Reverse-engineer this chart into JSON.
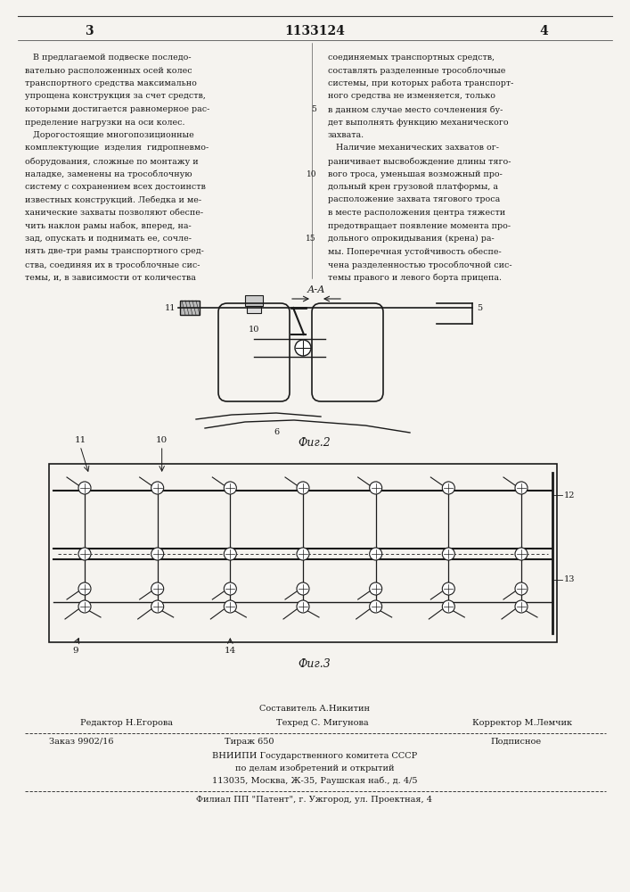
{
  "background_color": "#f5f3ef",
  "header": {
    "left_num": "3",
    "center_num": "1133124",
    "right_num": "4"
  },
  "left_column_text": [
    "   В предлагаемой подвеске последо-",
    "вательно расположенных осей колес",
    "транспортного средства максимально",
    "упрощена конструкция за счет средств,",
    "которыми достигается равномерное рас-",
    "пределение нагрузки на оси колес.",
    "   Дорогостоящие многопозиционные",
    "комплектующие  изделия  гидропневмо-",
    "оборудования, сложные по монтажу и",
    "наладке, заменены на трособлочную",
    "систему с сохранением всех достоинств",
    "известных конструкций. Лебедка и ме-",
    "ханические захваты позволяют обеспе-",
    "чить наклон рамы набок, вперед, на-",
    "зад, опускать и поднимать ее, сочле-",
    "нять две-три рамы транспортного сред-",
    "ства, соединяя их в трособлочные сис-",
    "темы, и, в зависимости от количества"
  ],
  "right_column_text": [
    "соединяемых транспортных средств,",
    "составлять разделенные трособлочные",
    "системы, при которых работа транспорт-",
    "ного средства не изменяется, только",
    "в данном случае место сочленения бу-",
    "дет выполнять функцию механического",
    "захвата.",
    "   Наличие механических захватов ог-",
    "раничивает высвобождение длины тяго-",
    "вого троса, уменьшая возможный про-",
    "дольный крен грузовой платформы, а",
    "расположение захвата тягового троса",
    "в месте расположения центра тяжести",
    "предотвращает появление момента про-",
    "дольного опрокидывания (крена) ра-",
    "мы. Поперечная устойчивость обеспе-",
    "чена разделенностью трособлочной сис-",
    "темы правого и левого борта прицепа."
  ],
  "fig2_label": "Фиг.2",
  "fig3_label": "Фиг.3",
  "aa_label": "А-А",
  "footer_sestavitel": "Составитель А.Никитин",
  "footer_line1_left": "Редактор Н.Егорова",
  "footer_line1_mid": "Техред С. Мигунова",
  "footer_line1_right": "Корректор М.Лемчик",
  "footer_line2_left": "Заказ 9902/16",
  "footer_line2_mid": "Тираж 650",
  "footer_line2_right": "Подписное",
  "footer_line3": "ВНИИПИ Государственного комитета СССР",
  "footer_line4": "по делам изобретений и открытий",
  "footer_line5": "113035, Москва, Ж-35, Раушская наб., д. 4/5",
  "footer_line6": "Филиал ПП \"Патент\", г. Ужгород, ул. Проектная, 4",
  "text_color": "#1a1a1a",
  "line_color": "#333333"
}
